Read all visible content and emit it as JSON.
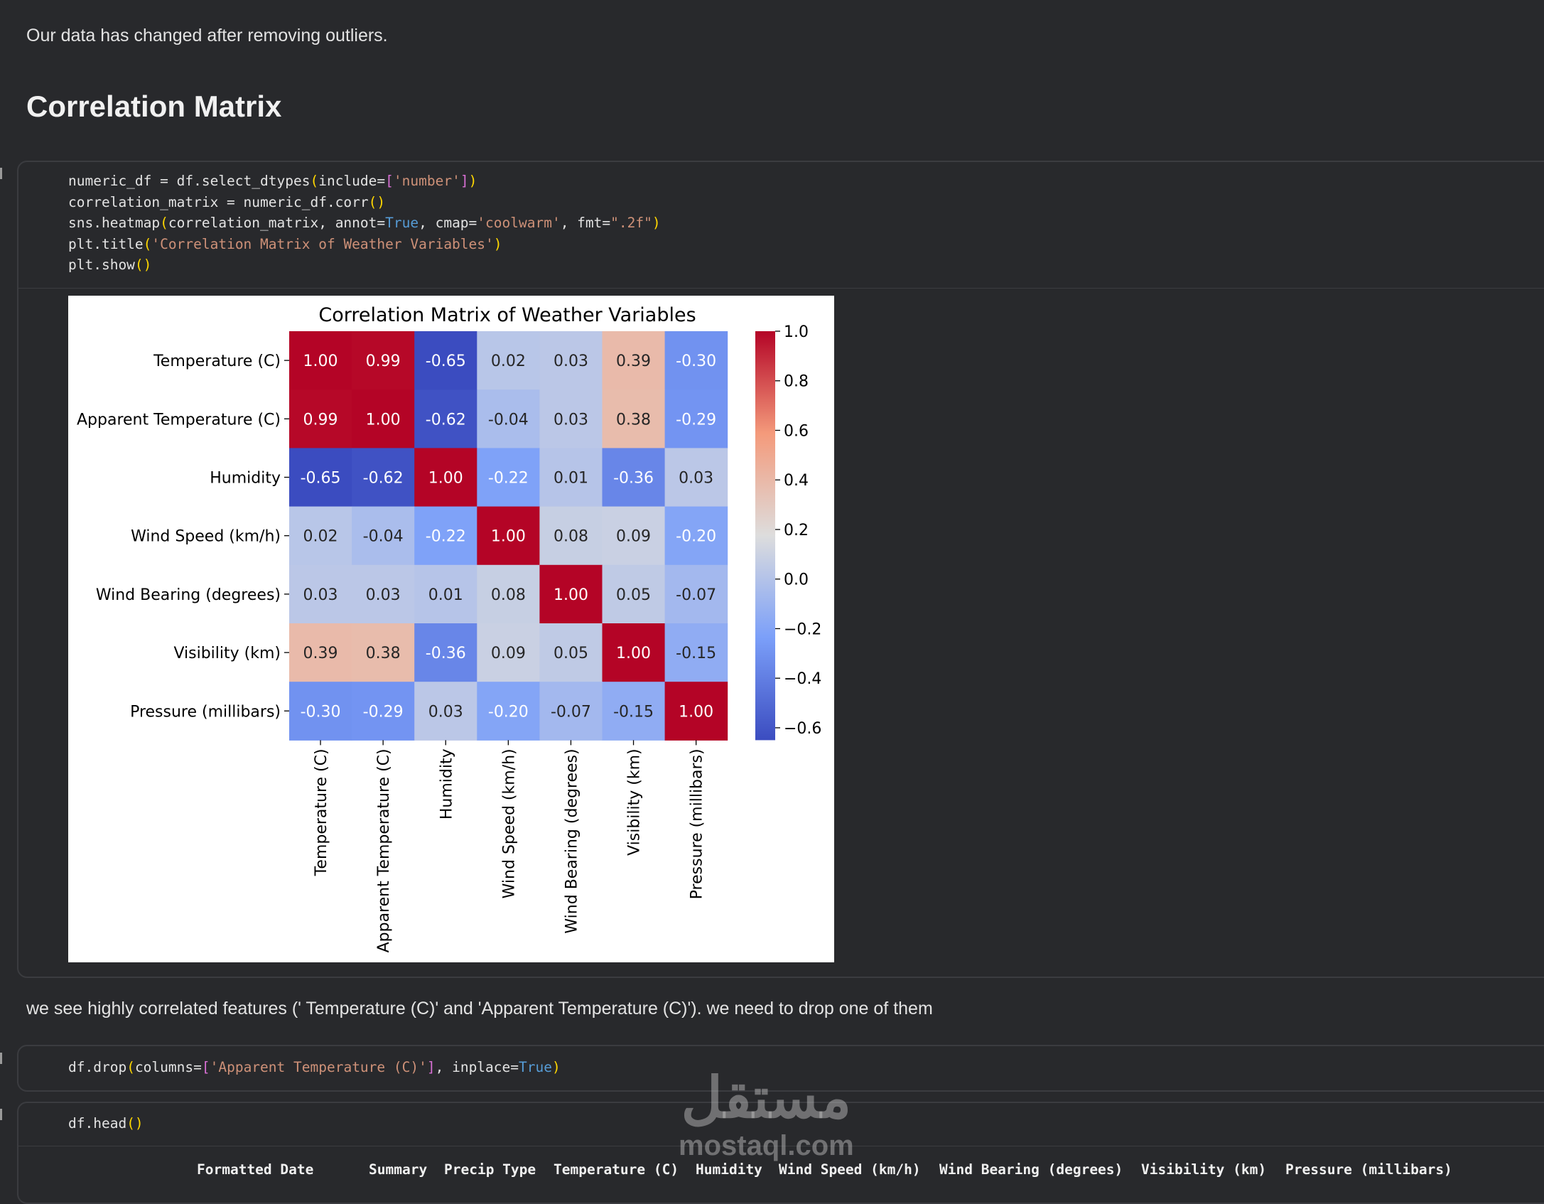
{
  "intro_text": "Our data has changed after removing outliers.",
  "heading": "Correlation Matrix",
  "code_cell_1": [
    [
      [
        "numeric_df = df.select_dtypes",
        "tx"
      ],
      [
        "(",
        "p1"
      ],
      [
        "include=",
        "tx"
      ],
      [
        "[",
        "p2"
      ],
      [
        "'number'",
        "str"
      ],
      [
        "]",
        "p2"
      ],
      [
        ")",
        "p1"
      ]
    ],
    [
      [
        "correlation_matrix = numeric_df.corr",
        "tx"
      ],
      [
        "()",
        "p1"
      ]
    ],
    [
      [
        "sns.heatmap",
        "tx"
      ],
      [
        "(",
        "p1"
      ],
      [
        "correlation_matrix, annot=",
        "tx"
      ],
      [
        "True",
        "kw"
      ],
      [
        ", cmap=",
        "tx"
      ],
      [
        "'coolwarm'",
        "str"
      ],
      [
        ", fmt=",
        "tx"
      ],
      [
        "\".2f\"",
        "str"
      ],
      [
        ")",
        "p1"
      ]
    ],
    [
      [
        "plt.title",
        "tx"
      ],
      [
        "(",
        "p1"
      ],
      [
        "'Correlation Matrix of Weather Variables'",
        "str"
      ],
      [
        ")",
        "p1"
      ]
    ],
    [
      [
        "plt.show",
        "tx"
      ],
      [
        "()",
        "p1"
      ]
    ]
  ],
  "chart_data": {
    "type": "heatmap",
    "title": "Correlation Matrix of Weather Variables",
    "labels": [
      "Temperature (C)",
      "Apparent Temperature (C)",
      "Humidity",
      "Wind Speed (km/h)",
      "Wind Bearing (degrees)",
      "Visibility (km)",
      "Pressure (millibars)"
    ],
    "values": [
      [
        1.0,
        0.99,
        -0.65,
        0.02,
        0.03,
        0.39,
        -0.3
      ],
      [
        0.99,
        1.0,
        -0.62,
        -0.04,
        0.03,
        0.38,
        -0.29
      ],
      [
        -0.65,
        -0.62,
        1.0,
        -0.22,
        0.01,
        -0.36,
        0.03
      ],
      [
        0.02,
        -0.04,
        -0.22,
        1.0,
        0.08,
        0.09,
        -0.2
      ],
      [
        0.03,
        0.03,
        0.01,
        0.08,
        1.0,
        0.05,
        -0.07
      ],
      [
        0.39,
        0.38,
        -0.36,
        0.09,
        0.05,
        1.0,
        -0.15
      ],
      [
        -0.3,
        -0.29,
        0.03,
        -0.2,
        -0.07,
        -0.15,
        1.0
      ]
    ],
    "cmap": "coolwarm",
    "vrange": [
      -0.65,
      1.0
    ],
    "colorbar_ticks": [
      1.0,
      0.8,
      0.6,
      0.4,
      0.2,
      0.0,
      -0.2,
      -0.4,
      -0.6
    ],
    "colorbar_tick_labels": [
      "1.0",
      "0.8",
      "0.6",
      "0.4",
      "0.2",
      "0.0",
      "−0.2",
      "−0.4",
      "−0.6"
    ],
    "cmap_stops": [
      "#3b4cc0",
      "#7b9ff9",
      "#dddddd",
      "#f49a7b",
      "#b40426"
    ]
  },
  "markdown_2": "we see highly correlated features (' Temperature (C)' and 'Apparent Temperature (C)'). we need to drop one of them",
  "code_cell_2": [
    [
      [
        "df.drop",
        "tx"
      ],
      [
        "(",
        "p1"
      ],
      [
        "columns=",
        "tx"
      ],
      [
        "[",
        "p2"
      ],
      [
        "'Apparent Temperature (C)'",
        "str"
      ],
      [
        "]",
        "p2"
      ],
      [
        ", inplace=",
        "tx"
      ],
      [
        "True",
        "kw"
      ],
      [
        ")",
        "p1"
      ]
    ]
  ],
  "code_cell_3": [
    [
      [
        "df.head",
        "tx"
      ],
      [
        "()",
        "p1"
      ]
    ]
  ],
  "table_headers": [
    "Formatted Date",
    "Summary",
    "Precip Type",
    "Temperature (C)",
    "Humidity",
    "Wind Speed (km/h)",
    "Wind Bearing (degrees)",
    "Visibility (km)",
    "Pressure (millibars)"
  ],
  "watermark": {
    "arabic": "مستقل",
    "latin": "mostaql.com"
  }
}
